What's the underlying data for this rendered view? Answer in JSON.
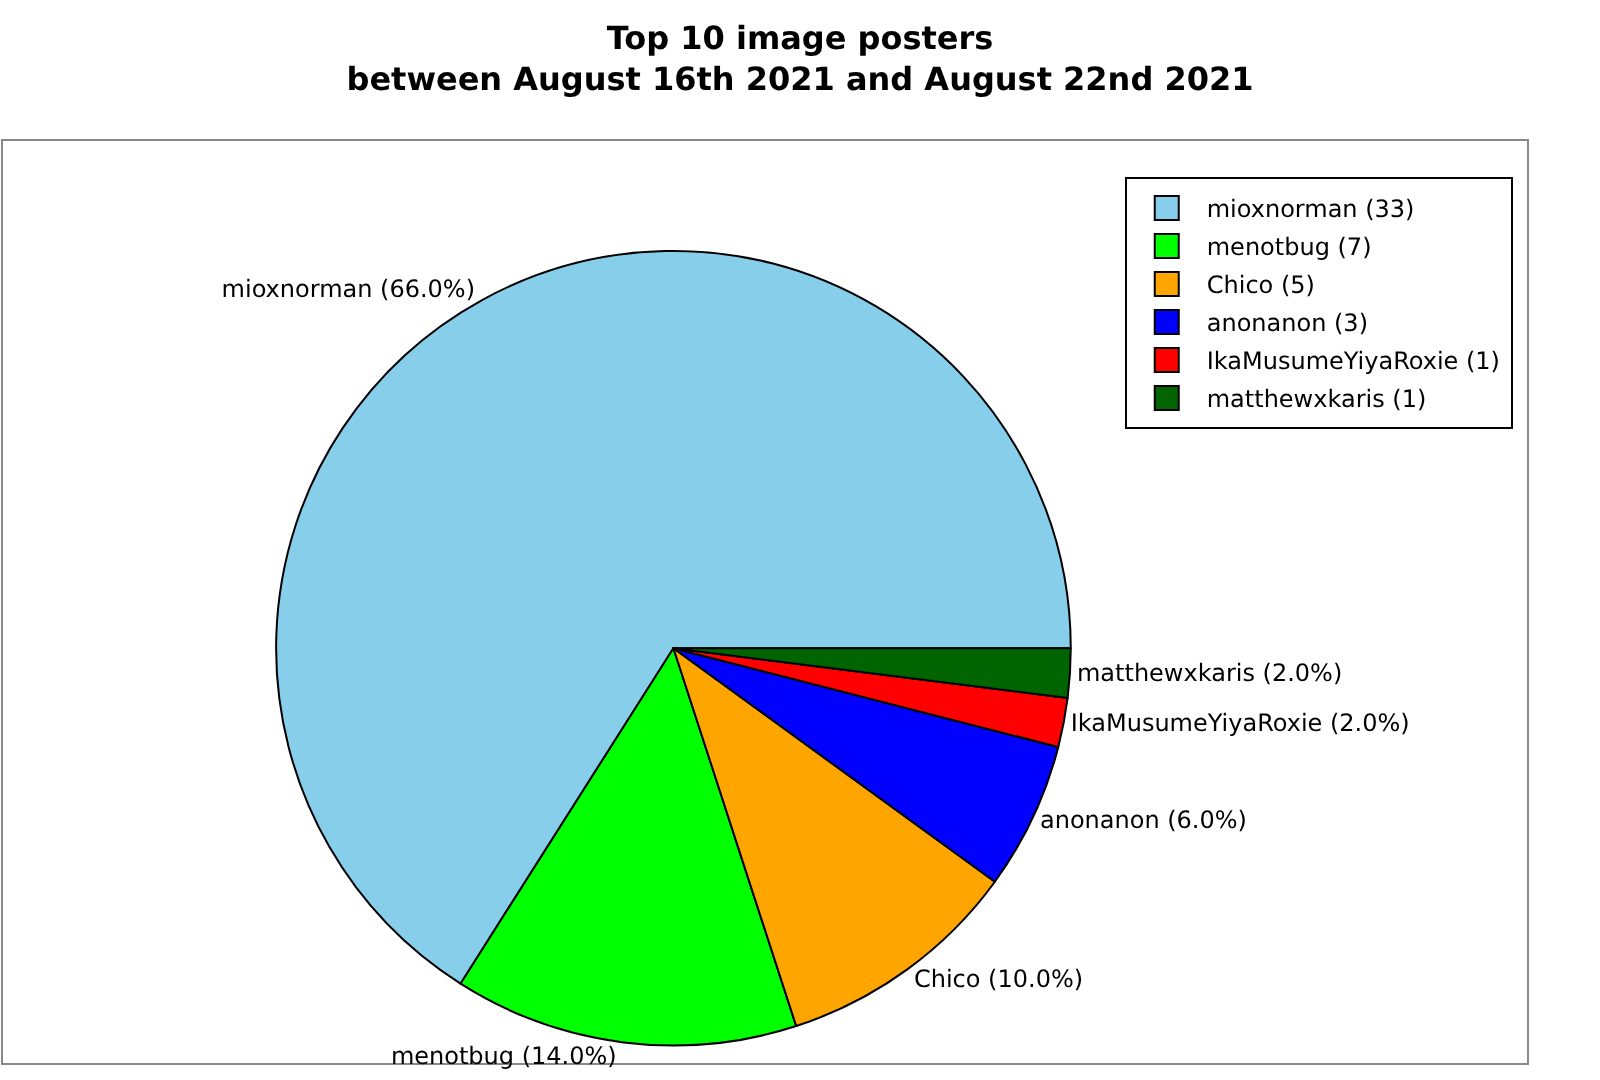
{
  "chart_data": {
    "type": "pie",
    "title": "Top 10 image posters\nbetween August 16th 2021 and August 22nd 2021",
    "categories": [
      "mioxnorman (33)",
      "menotbug (7)",
      "Chico (5)",
      "anonanon (3)",
      "IkaMusumeYiyaRoxie (1)",
      "matthewxkaris (1)"
    ],
    "values": [
      66.0,
      14.0,
      10.0,
      6.0,
      2.0,
      2.0
    ],
    "colors": [
      "#87ceeb",
      "#00ff00",
      "#ffa500",
      "#0000ff",
      "#ff0000",
      "#006400"
    ],
    "value_labels": [
      "mioxnorman (66.0%)",
      "menotbug (14.0%)",
      "Chico (10.0%)",
      "anonanon (6.0%)",
      "IkaMusumeYiyaRoxie (2.0%)",
      "matthewxkaris (2.0%)"
    ],
    "legend": "top right"
  }
}
